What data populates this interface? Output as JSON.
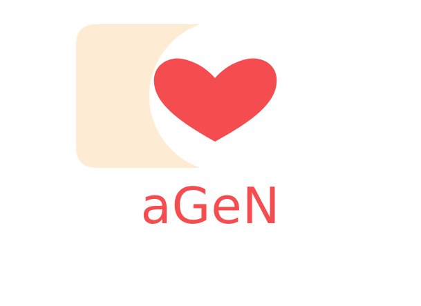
{
  "logo": {
    "wordmark": "aGeN",
    "heart_icon": "heart-icon",
    "colors": {
      "heart": "#f44c4f",
      "wordmark": "#f44c4f",
      "backdrop": "#fdecd3",
      "background": "#ffffff"
    }
  }
}
